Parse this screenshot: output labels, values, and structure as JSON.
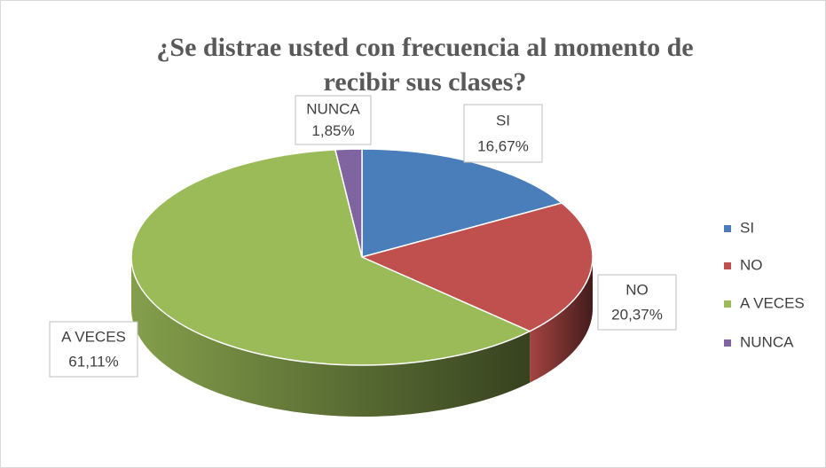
{
  "chart_data": {
    "type": "pie",
    "title": "¿Se distrae usted con frecuencia al momento de recibir sus clases?",
    "categories": [
      "SI",
      "NO",
      "A VECES",
      "NUNCA"
    ],
    "values": [
      16.67,
      20.37,
      61.11,
      1.85
    ],
    "value_labels": [
      "16,67%",
      "20,37%",
      "61,11%",
      "1,85%"
    ],
    "colors": [
      "#4a7ebb",
      "#c0504d",
      "#9bbb59",
      "#8064a2"
    ],
    "legend": "right"
  }
}
